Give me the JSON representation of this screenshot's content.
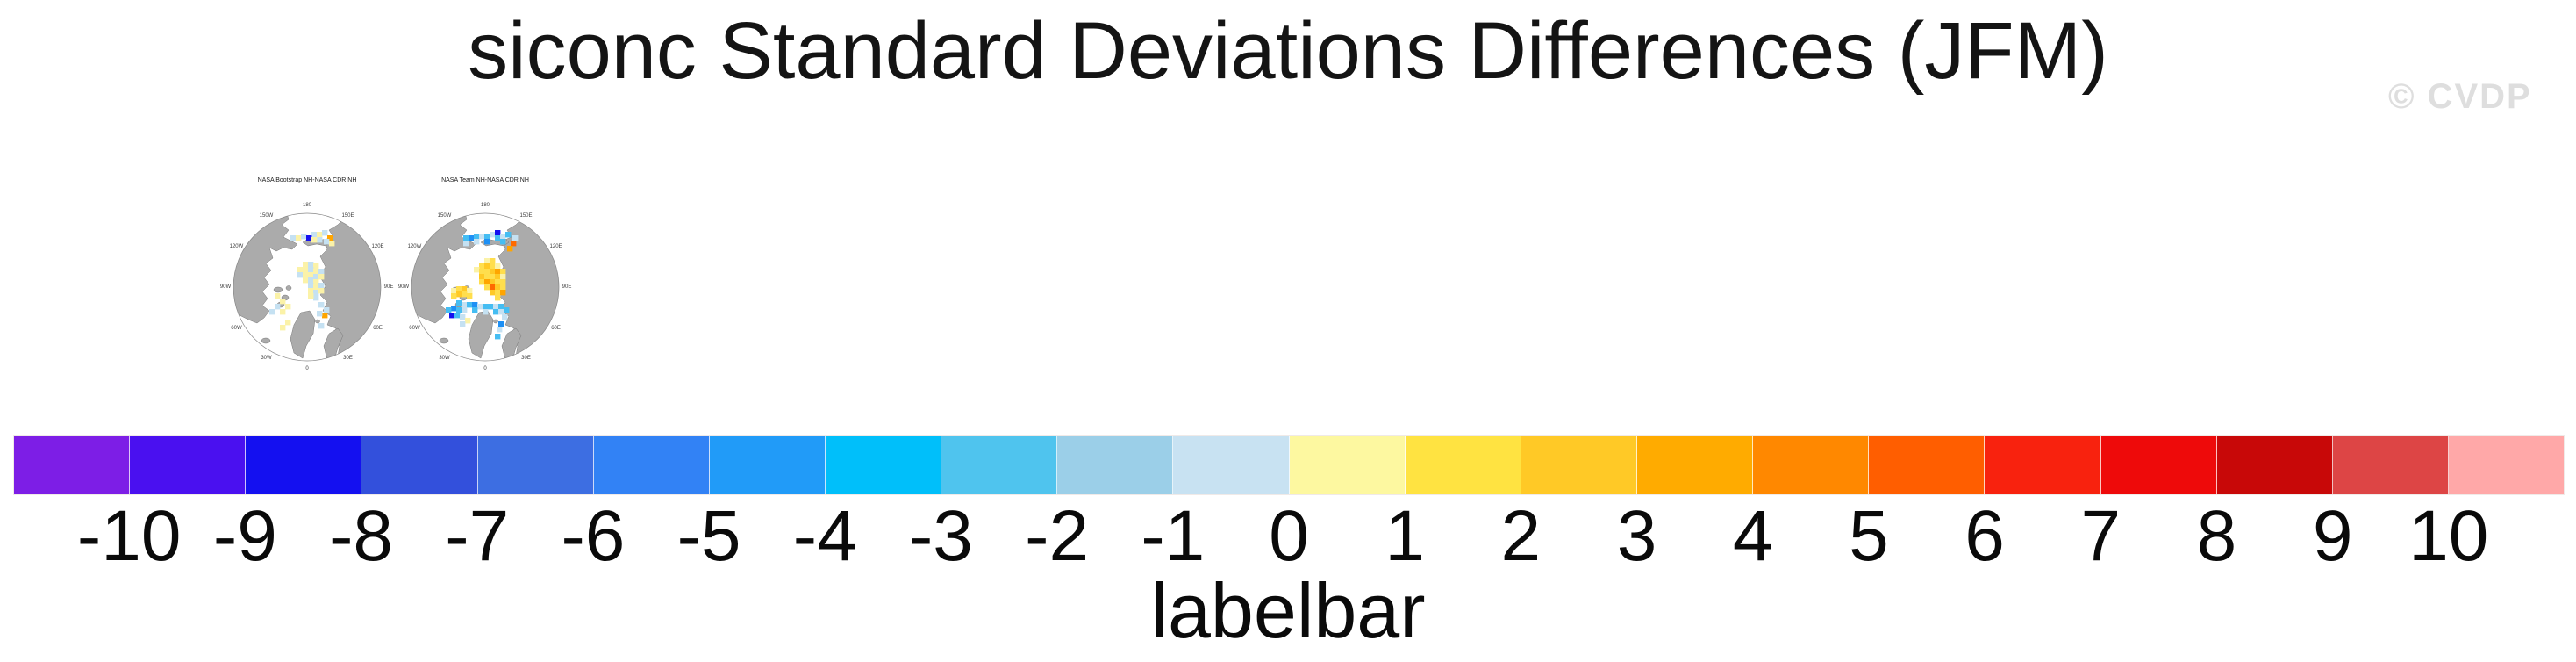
{
  "page": {
    "watermark": "© CVDP"
  },
  "chart_data": {
    "type": "heatmap",
    "title": "siconc Standard Deviations Differences (JFM)",
    "variable": "siconc",
    "season": "JFM",
    "panels": [
      "NASA Bootstrap NH-NASA CDR NH",
      "NASA Team NH-NASA CDR NH"
    ],
    "colorbar": {
      "caption": "labelbar",
      "orientation": "horizontal",
      "ticks": [
        -10,
        -9,
        -8,
        -7,
        -6,
        -5,
        -4,
        -3,
        -2,
        -1,
        0,
        1,
        2,
        3,
        4,
        5,
        6,
        7,
        8,
        9,
        10
      ],
      "colors": [
        "#7D1EE6",
        "#4A10F0",
        "#1410F0",
        "#3350DC",
        "#3D6EE2",
        "#3282F5",
        "#219BF8",
        "#00BFFA",
        "#4FC4EE",
        "#9BCFE8",
        "#C8E2F2",
        "#FDF8A0",
        "#FFE341",
        "#FFC926",
        "#FFAB00",
        "#FF8800",
        "#FF5E00",
        "#F8220E",
        "#EE0A0A",
        "#C80808",
        "#DD4545",
        "#FFA8A8"
      ]
    }
  },
  "maps": {
    "land_color": "#ABABAB",
    "lon_ring": [
      {
        "label": "180",
        "angle": 0
      },
      {
        "label": "150E",
        "angle": 30
      },
      {
        "label": "120E",
        "angle": 60
      },
      {
        "label": "90E",
        "angle": 90
      },
      {
        "label": "60E",
        "angle": 120
      },
      {
        "label": "30E",
        "angle": 150
      },
      {
        "label": "0",
        "angle": 180
      },
      {
        "label": "30W",
        "angle": 210
      },
      {
        "label": "60W",
        "angle": 240
      },
      {
        "label": "90W",
        "angle": 270
      },
      {
        "label": "120W",
        "angle": 300
      },
      {
        "label": "150W",
        "angle": 330
      }
    ],
    "palette": {
      "y": "#FBF2A8",
      "Y": "#FFDE4D",
      "g": "#FFC926",
      "o": "#FFA500",
      "O": "#FF6A00",
      "b": "#C5E1F2",
      "B": "#45BDF2",
      "d": "#1E90F5",
      "D": "#1410F0"
    },
    "panels": [
      {
        "title": "NASA Bootstrap NH-NASA CDR NH",
        "cells": [
          [
            66,
            26,
            "b"
          ],
          [
            72,
            26,
            "y"
          ],
          [
            78,
            24,
            "b"
          ],
          [
            90,
            22,
            "b"
          ],
          [
            96,
            22,
            "y"
          ],
          [
            102,
            20,
            "b"
          ],
          [
            84,
            26,
            "D"
          ],
          [
            96,
            28,
            "b"
          ],
          [
            108,
            26,
            "o"
          ],
          [
            104,
            30,
            "b"
          ],
          [
            110,
            32,
            "y"
          ],
          [
            90,
            28,
            "y"
          ],
          [
            80,
            56,
            "y"
          ],
          [
            86,
            56,
            "b"
          ],
          [
            92,
            58,
            "y"
          ],
          [
            74,
            62,
            "y"
          ],
          [
            80,
            62,
            "y"
          ],
          [
            86,
            62,
            "b"
          ],
          [
            92,
            64,
            "y"
          ],
          [
            98,
            64,
            "b"
          ],
          [
            74,
            68,
            "b"
          ],
          [
            80,
            68,
            "y"
          ],
          [
            86,
            68,
            "y"
          ],
          [
            92,
            70,
            "b"
          ],
          [
            98,
            70,
            "y"
          ],
          [
            80,
            74,
            "y"
          ],
          [
            86,
            74,
            "b"
          ],
          [
            92,
            76,
            "y"
          ],
          [
            86,
            80,
            "b"
          ],
          [
            92,
            82,
            "y"
          ],
          [
            98,
            80,
            "b"
          ],
          [
            86,
            86,
            "y"
          ],
          [
            92,
            88,
            "b"
          ],
          [
            98,
            86,
            "y"
          ],
          [
            92,
            94,
            "b"
          ],
          [
            86,
            92,
            "y"
          ],
          [
            48,
            92,
            "y"
          ],
          [
            54,
            98,
            "y"
          ],
          [
            48,
            104,
            "b"
          ],
          [
            60,
            104,
            "y"
          ],
          [
            54,
            110,
            "y"
          ],
          [
            42,
            110,
            "b"
          ],
          [
            98,
            102,
            "b"
          ],
          [
            104,
            108,
            "b"
          ],
          [
            102,
            114,
            "o"
          ],
          [
            96,
            112,
            "b"
          ],
          [
            60,
            122,
            "y"
          ],
          [
            54,
            128,
            "y"
          ],
          [
            98,
            126,
            "b"
          ]
        ]
      },
      {
        "title": "NASA Team NH-NASA CDR NH",
        "cells": [
          [
            60,
            26,
            "B"
          ],
          [
            66,
            26,
            "d"
          ],
          [
            72,
            24,
            "B"
          ],
          [
            78,
            24,
            "b"
          ],
          [
            84,
            24,
            "B"
          ],
          [
            90,
            22,
            "b"
          ],
          [
            96,
            20,
            "D"
          ],
          [
            96,
            26,
            "B"
          ],
          [
            102,
            24,
            "b"
          ],
          [
            108,
            22,
            "B"
          ],
          [
            84,
            30,
            "d"
          ],
          [
            72,
            30,
            "b"
          ],
          [
            114,
            32,
            "O"
          ],
          [
            110,
            38,
            "o"
          ],
          [
            116,
            26,
            "b"
          ],
          [
            102,
            30,
            "B"
          ],
          [
            60,
            32,
            "b"
          ],
          [
            84,
            52,
            "y"
          ],
          [
            90,
            52,
            "Y"
          ],
          [
            78,
            58,
            "Y"
          ],
          [
            84,
            58,
            "g"
          ],
          [
            90,
            58,
            "Y"
          ],
          [
            96,
            58,
            "y"
          ],
          [
            72,
            62,
            "y"
          ],
          [
            78,
            64,
            "Y"
          ],
          [
            84,
            64,
            "Y"
          ],
          [
            90,
            64,
            "g"
          ],
          [
            96,
            64,
            "o"
          ],
          [
            102,
            64,
            "Y"
          ],
          [
            78,
            70,
            "g"
          ],
          [
            84,
            70,
            "Y"
          ],
          [
            90,
            70,
            "Y"
          ],
          [
            96,
            70,
            "g"
          ],
          [
            102,
            70,
            "y"
          ],
          [
            78,
            76,
            "Y"
          ],
          [
            84,
            76,
            "o"
          ],
          [
            90,
            76,
            "g"
          ],
          [
            96,
            76,
            "Y"
          ],
          [
            102,
            76,
            "Y"
          ],
          [
            84,
            82,
            "Y"
          ],
          [
            90,
            82,
            "O"
          ],
          [
            96,
            82,
            "g"
          ],
          [
            102,
            82,
            "Y"
          ],
          [
            90,
            88,
            "g"
          ],
          [
            96,
            88,
            "Y"
          ],
          [
            102,
            88,
            "o"
          ],
          [
            96,
            94,
            "Y"
          ],
          [
            46,
            86,
            "y"
          ],
          [
            52,
            84,
            "Y"
          ],
          [
            58,
            84,
            "g"
          ],
          [
            64,
            86,
            "y"
          ],
          [
            52,
            90,
            "g"
          ],
          [
            58,
            90,
            "Y"
          ],
          [
            64,
            92,
            "Y"
          ],
          [
            46,
            92,
            "Y"
          ],
          [
            52,
            100,
            "B"
          ],
          [
            58,
            102,
            "b"
          ],
          [
            64,
            102,
            "B"
          ],
          [
            70,
            102,
            "d"
          ],
          [
            76,
            104,
            "b"
          ],
          [
            82,
            104,
            "B"
          ],
          [
            88,
            104,
            "B"
          ],
          [
            94,
            104,
            "b"
          ],
          [
            100,
            104,
            "B"
          ],
          [
            46,
            106,
            "d"
          ],
          [
            52,
            108,
            "B"
          ],
          [
            40,
            108,
            "B"
          ],
          [
            58,
            108,
            "b"
          ],
          [
            70,
            108,
            "B"
          ],
          [
            82,
            110,
            "b"
          ],
          [
            94,
            110,
            "B"
          ],
          [
            44,
            114,
            "D"
          ],
          [
            50,
            114,
            "B"
          ],
          [
            56,
            116,
            "b"
          ],
          [
            100,
            110,
            "b"
          ],
          [
            106,
            108,
            "B"
          ],
          [
            62,
            120,
            "y"
          ],
          [
            56,
            124,
            "b"
          ],
          [
            100,
            124,
            "d"
          ],
          [
            98,
            130,
            "b"
          ],
          [
            96,
            138,
            "B"
          ],
          [
            104,
            116,
            "b"
          ]
        ]
      }
    ]
  }
}
